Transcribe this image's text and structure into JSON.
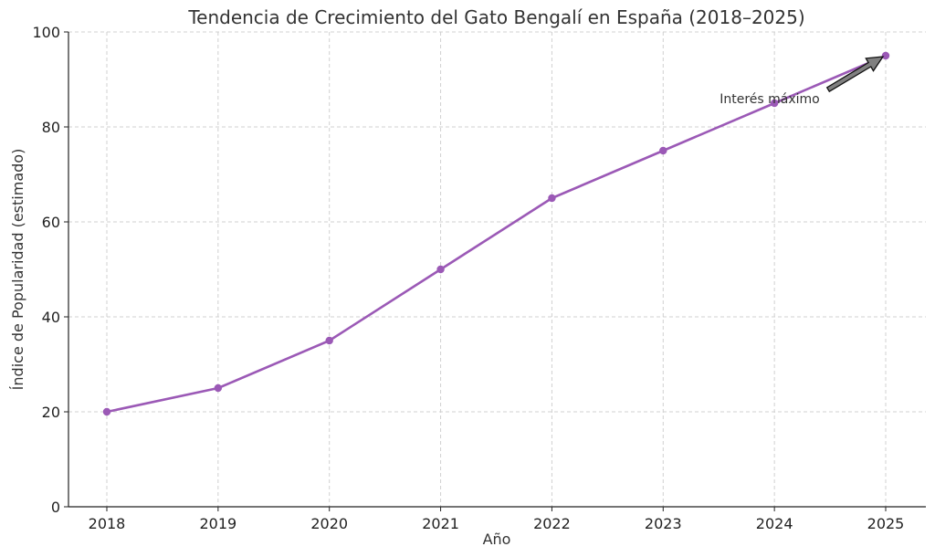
{
  "chart_data": {
    "type": "line",
    "title": "Tendencia de Crecimiento del Gato Bengalí en España (2018–2025)",
    "xlabel": "Año",
    "ylabel": "Índice de Popularidad (estimado)",
    "x": [
      2018,
      2019,
      2020,
      2021,
      2022,
      2023,
      2024,
      2025
    ],
    "xticks": [
      "2018",
      "2019",
      "2020",
      "2021",
      "2022",
      "2023",
      "2024",
      "2025"
    ],
    "yticks": [
      "0",
      "20",
      "40",
      "60",
      "80",
      "100"
    ],
    "ylim": [
      0,
      100
    ],
    "series": [
      {
        "values": [
          20,
          25,
          35,
          50,
          65,
          75,
          85,
          95
        ],
        "color": "#9b59b6"
      }
    ],
    "grid": true,
    "annotations": [
      {
        "text": "Interés máximo",
        "target": {
          "x": 2025,
          "y": 95
        },
        "arrow": true
      }
    ]
  }
}
